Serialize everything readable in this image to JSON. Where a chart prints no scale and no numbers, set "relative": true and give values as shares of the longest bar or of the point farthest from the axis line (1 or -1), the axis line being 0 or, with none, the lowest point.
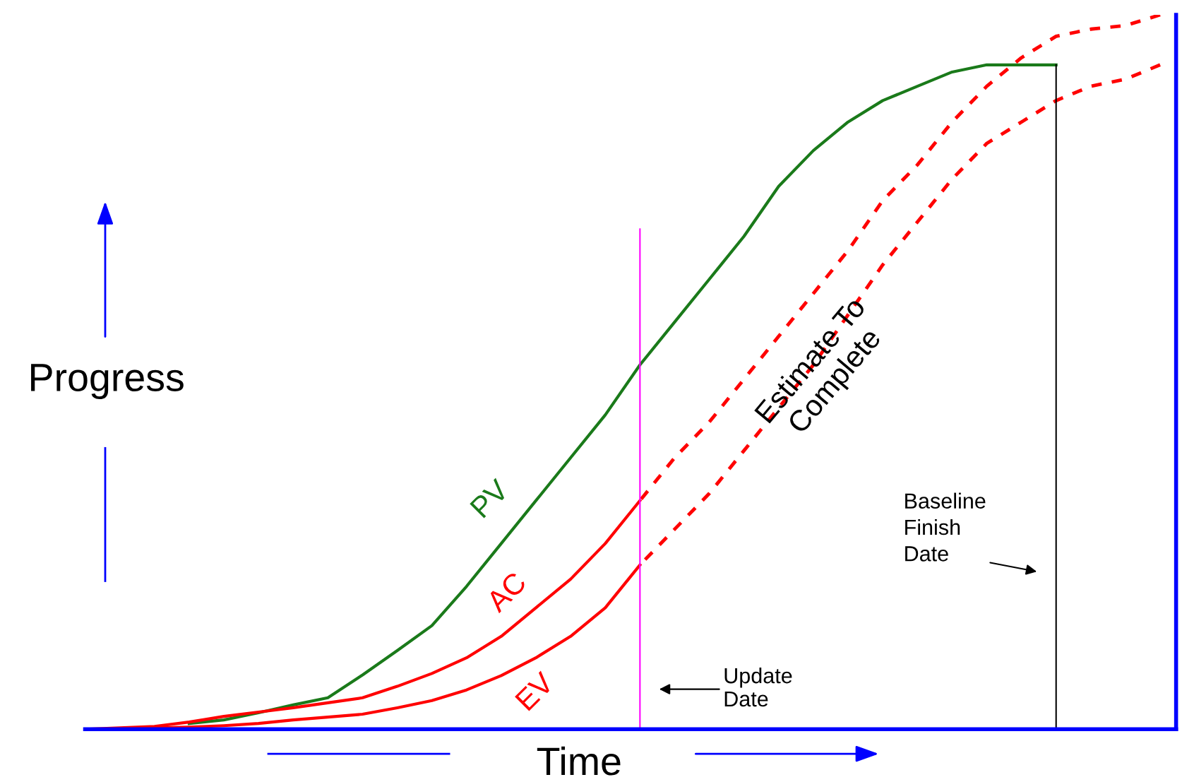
{
  "chart_data": {
    "type": "line",
    "relative": true,
    "xlabel": "Time",
    "ylabel": "Progress",
    "legend": false,
    "categories": [
      null,
      null,
      null,
      null,
      null,
      null,
      null,
      null,
      null,
      null,
      null,
      null,
      null,
      null,
      null,
      null,
      null,
      null,
      null,
      null,
      null,
      null,
      null,
      null,
      null,
      null,
      null,
      null,
      null,
      null,
      null,
      null
    ],
    "series": [
      {
        "name": "PV",
        "color": "#1a7a1a",
        "line_style": "solid",
        "values": [
          null,
          null,
          null,
          0.008,
          0.013,
          0.023,
          0.034,
          0.044,
          0.076,
          0.11,
          0.145,
          0.2,
          0.26,
          0.32,
          0.38,
          0.44,
          0.51,
          0.57,
          0.63,
          0.69,
          0.76,
          0.81,
          0.85,
          0.88,
          0.9,
          0.92,
          0.93,
          0.93,
          0.93,
          null,
          null,
          null
        ]
      },
      {
        "name": "AC",
        "color": "#ff0000",
        "line_style": "solid",
        "values": [
          0,
          0.002,
          0.004,
          0.01,
          0.018,
          0.024,
          0.03,
          0.037,
          0.044,
          0.06,
          0.078,
          0.1,
          0.13,
          0.17,
          0.21,
          0.26,
          0.32,
          null,
          null,
          null,
          null,
          null,
          null,
          null,
          null,
          null,
          null,
          null,
          null,
          null,
          null,
          null
        ]
      },
      {
        "name": "EV",
        "color": "#ff0000",
        "line_style": "solid",
        "values": [
          0,
          0,
          0.002,
          0.003,
          0.005,
          0.008,
          0.013,
          0.017,
          0.021,
          0.03,
          0.04,
          0.055,
          0.075,
          0.1,
          0.13,
          0.17,
          0.23,
          null,
          null,
          null,
          null,
          null,
          null,
          null,
          null,
          null,
          null,
          null,
          null,
          null,
          null,
          null
        ]
      },
      {
        "color": "#ff0000",
        "line_style": "dashed",
        "values": [
          null,
          null,
          null,
          null,
          null,
          null,
          null,
          null,
          null,
          null,
          null,
          null,
          null,
          null,
          null,
          null,
          0.32,
          0.38,
          0.43,
          0.49,
          0.55,
          0.61,
          0.67,
          0.74,
          0.79,
          0.85,
          0.9,
          0.94,
          0.97,
          0.98,
          0.985,
          1.0
        ]
      },
      {
        "color": "#ff0000",
        "line_style": "dashed",
        "values": [
          null,
          null,
          null,
          null,
          null,
          null,
          null,
          null,
          null,
          null,
          null,
          null,
          null,
          null,
          null,
          null,
          0.23,
          0.28,
          0.33,
          0.39,
          0.45,
          0.51,
          0.58,
          0.65,
          0.71,
          0.77,
          0.82,
          0.85,
          0.88,
          0.9,
          0.91,
          0.93
        ]
      }
    ],
    "annotations": [
      "Estimate To\nComplete",
      "Update\nDate",
      "Baseline\nFinish\nDate"
    ]
  }
}
